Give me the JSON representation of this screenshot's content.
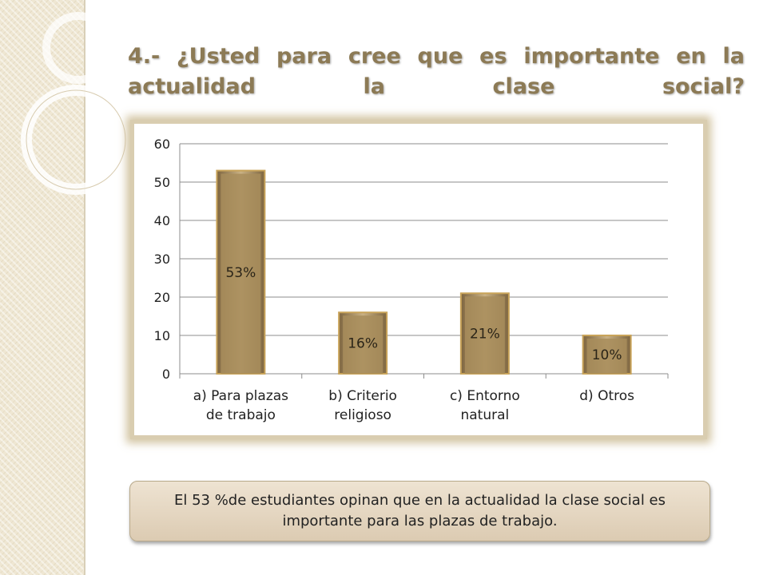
{
  "title": "4.- ¿Usted para cree que es importante en la actualidad  la clase social?",
  "summary": "El 53 %de estudiantes opinan que en la actualidad la clase social es importante para las plazas de trabajo.",
  "colors": {
    "bar": "#a88d5c",
    "bar_dark": "#7d6540",
    "bar_light": "#c9b184",
    "title": "#8c7a55",
    "frame": "#d9cdb0"
  },
  "chart_data": {
    "type": "bar",
    "categories": [
      [
        "a) Para plazas",
        "de trabajo"
      ],
      [
        "b) Criterio",
        "religioso"
      ],
      [
        "c) Entorno",
        "natural"
      ],
      [
        "d) Otros"
      ]
    ],
    "values": [
      53,
      16,
      21,
      10
    ],
    "data_labels": [
      "53%",
      "16%",
      "21%",
      "10%"
    ],
    "ylim": [
      0,
      60
    ],
    "yticks": [
      "0",
      "10",
      "20",
      "30",
      "40",
      "50",
      "60"
    ],
    "grid": true,
    "legend": "none"
  }
}
